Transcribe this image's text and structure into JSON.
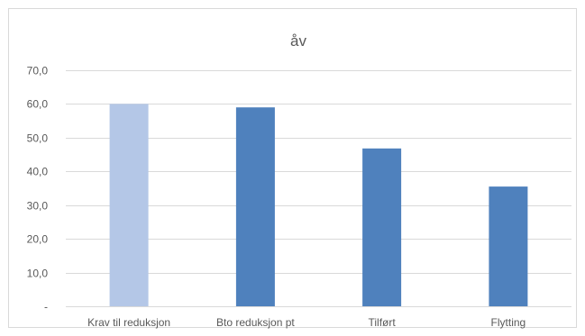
{
  "chart_data": {
    "type": "bar",
    "title": "åv",
    "categories": [
      "Krav til reduksjon",
      "Bto reduksjon pt",
      "Tilført",
      "Flytting"
    ],
    "values": [
      60.0,
      59.0,
      46.8,
      35.5
    ],
    "ylim": [
      0,
      70
    ],
    "yticks": [
      "-",
      "10,0",
      "20,0",
      "30,0",
      "40,0",
      "50,0",
      "60,0",
      "70,0"
    ],
    "grid": true,
    "legend": "none",
    "colors": {
      "highlight": "#b4c7e7",
      "bar": "#4f81bd",
      "grid": "#d9d9d9",
      "text": "#595959"
    }
  }
}
